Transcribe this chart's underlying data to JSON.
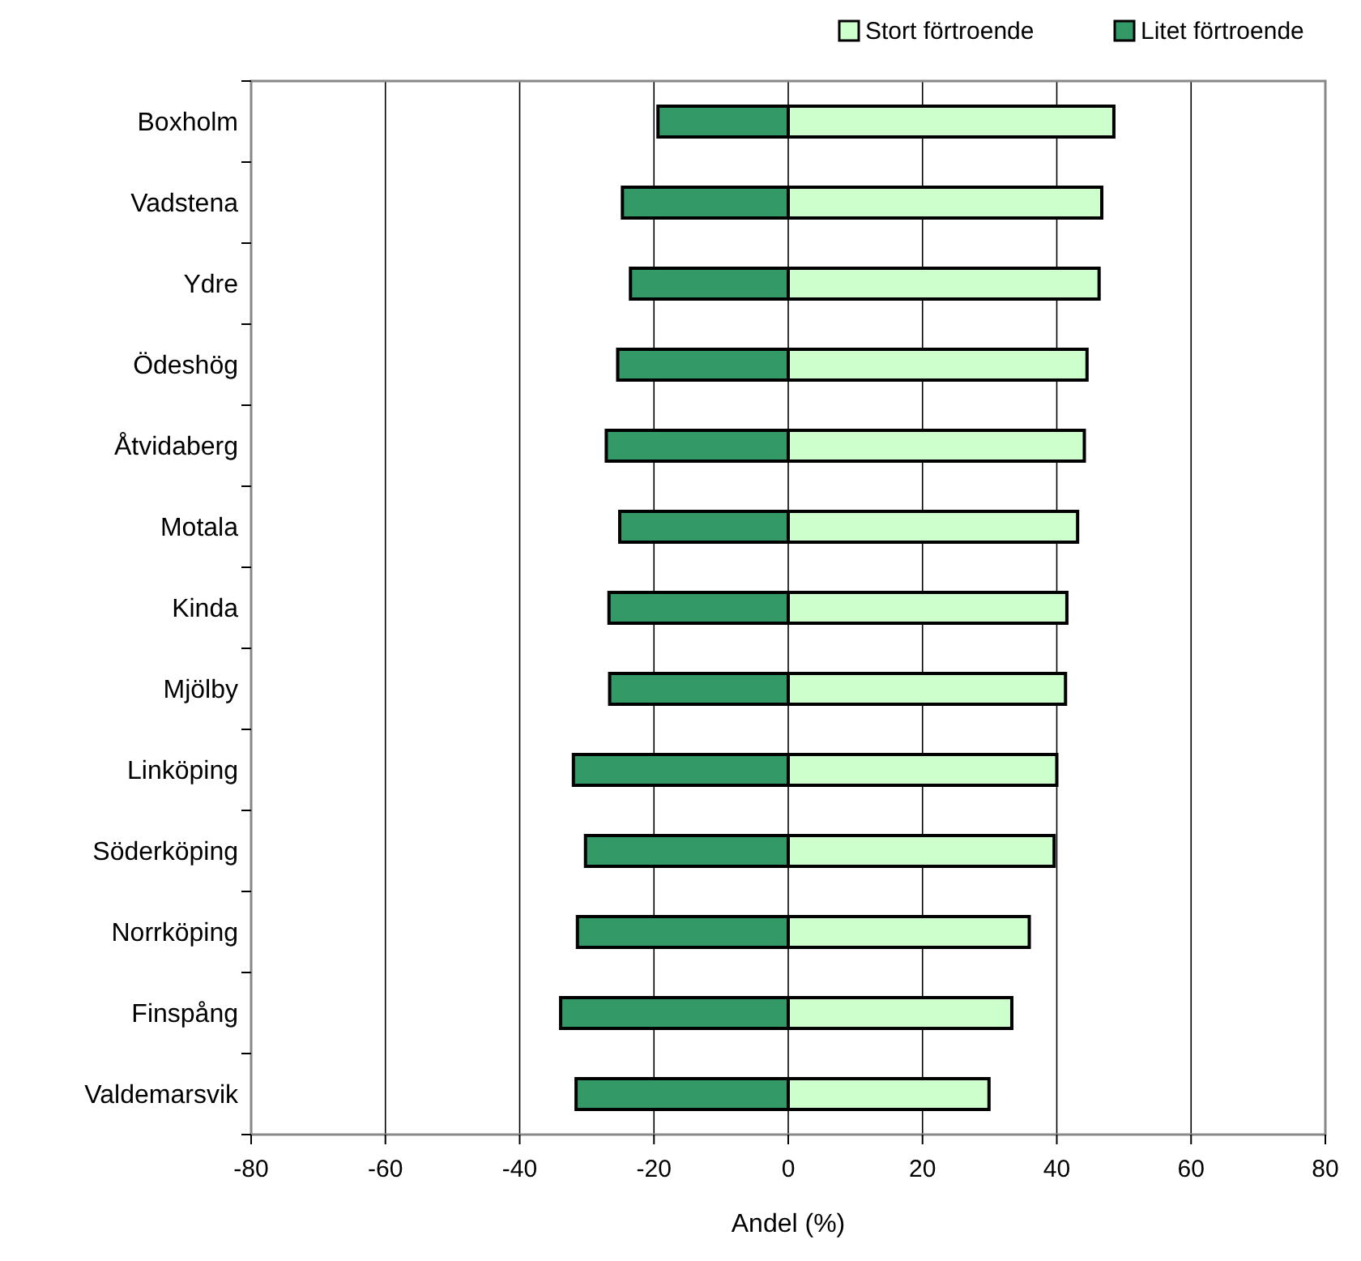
{
  "chart_data": {
    "type": "bar",
    "orientation": "horizontal",
    "stacked": true,
    "xlabel": "Andel (%)",
    "categories": [
      "Boxholm",
      "Vadstena",
      "Ydre",
      "Ödeshög",
      "Åtvidaberg",
      "Motala",
      "Kinda",
      "Mjölby",
      "Linköping",
      "Söderköping",
      "Norrköping",
      "Finspång",
      "Valdemarsvik"
    ],
    "series": [
      {
        "name": "Stort förtroende",
        "color": "#ccffcc",
        "values": [
          48.5,
          46.7,
          46.3,
          44.5,
          44.1,
          43.1,
          41.5,
          41.3,
          40.0,
          39.6,
          35.9,
          33.3,
          29.9
        ]
      },
      {
        "name": "Litet förtroende",
        "color": "#339966",
        "values": [
          -19.4,
          -24.7,
          -23.5,
          -25.4,
          -27.1,
          -25.1,
          -26.7,
          -26.6,
          -32.0,
          -30.2,
          -31.4,
          -33.9,
          -31.6
        ]
      }
    ],
    "xlim": [
      -80,
      80
    ],
    "xticks": [
      -80,
      -60,
      -40,
      -20,
      0,
      20,
      40,
      60,
      80
    ],
    "grid": "x",
    "legend": "top right"
  }
}
